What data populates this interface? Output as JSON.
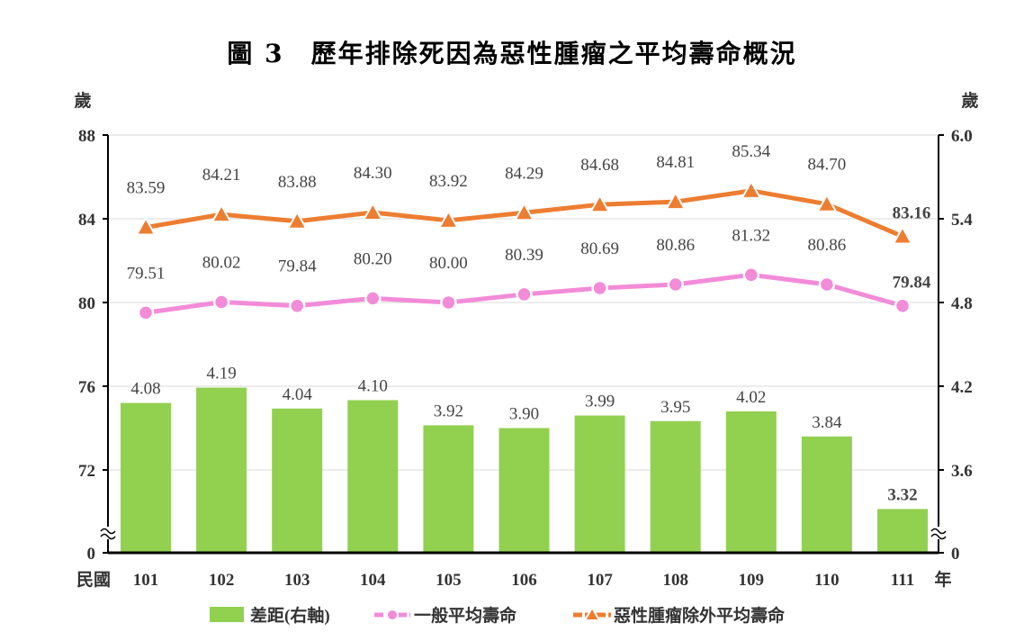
{
  "chart_data": {
    "type": "bar+line",
    "title": "圖 3　歷年排除死因為惡性腫瘤之平均壽命概況",
    "x_prefix": "民國",
    "x_suffix": "年",
    "left_unit": "歲",
    "right_unit": "歲",
    "categories": [
      "101",
      "102",
      "103",
      "104",
      "105",
      "106",
      "107",
      "108",
      "109",
      "110",
      "111"
    ],
    "left_ticks": [
      0,
      72,
      76,
      80,
      84,
      88
    ],
    "right_ticks": [
      "0",
      "3.6",
      "4.2",
      "4.8",
      "5.4",
      "6.0"
    ],
    "left_ylim": [
      72,
      88
    ],
    "right_ylim": [
      3.6,
      6.0
    ],
    "axis_break": true,
    "series": [
      {
        "name": "差距(右軸)",
        "type": "bar",
        "axis": "right",
        "color": "#92d050",
        "values": [
          4.08,
          4.19,
          4.04,
          4.1,
          3.92,
          3.9,
          3.99,
          3.95,
          4.02,
          3.84,
          3.32
        ],
        "labels": [
          "4.08",
          "4.19",
          "4.04",
          "4.10",
          "3.92",
          "3.90",
          "3.99",
          "3.95",
          "4.02",
          "3.84",
          "3.32"
        ]
      },
      {
        "name": "一般平均壽命",
        "type": "line",
        "marker": "circle",
        "axis": "left",
        "color": "#f28bd8",
        "values": [
          79.51,
          80.02,
          79.84,
          80.2,
          80.0,
          80.39,
          80.69,
          80.86,
          81.32,
          80.86,
          79.84
        ],
        "labels": [
          "79.51",
          "80.02",
          "79.84",
          "80.20",
          "80.00",
          "80.39",
          "80.69",
          "80.86",
          "81.32",
          "80.86",
          "79.84"
        ]
      },
      {
        "name": "惡性腫瘤除外平均壽命",
        "type": "line",
        "marker": "triangle",
        "axis": "left",
        "color": "#ed7d31",
        "values": [
          83.59,
          84.21,
          83.88,
          84.3,
          83.92,
          84.29,
          84.68,
          84.81,
          85.34,
          84.7,
          83.16
        ],
        "labels": [
          "83.59",
          "84.21",
          "83.88",
          "84.30",
          "83.92",
          "84.29",
          "84.68",
          "84.81",
          "85.34",
          "84.70",
          "83.16"
        ]
      }
    ],
    "legend_position": "bottom"
  }
}
